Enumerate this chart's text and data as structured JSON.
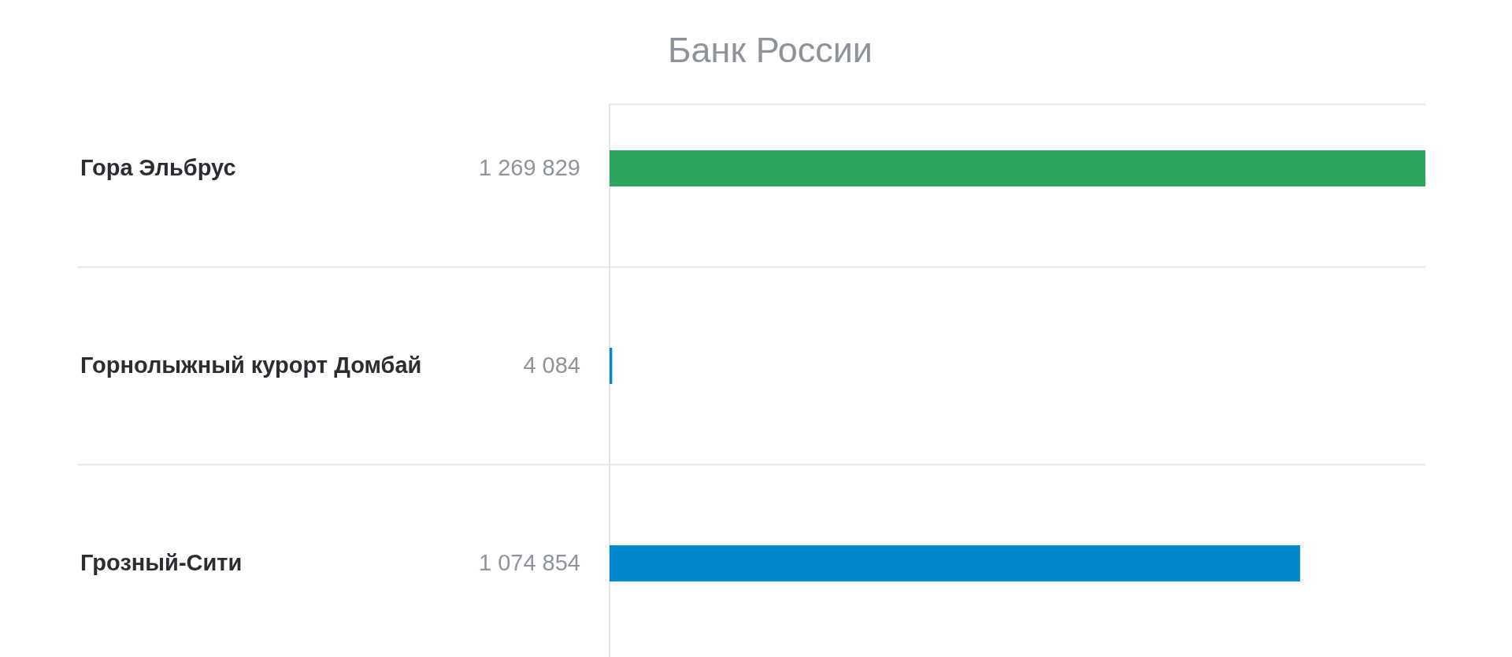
{
  "chart_data": {
    "type": "bar",
    "orientation": "horizontal",
    "title": "Банк России",
    "categories": [
      "Гора Эльбрус",
      "Горнолыжный курорт Домбай",
      "Грозный-Сити"
    ],
    "values": [
      1269829,
      4084,
      1074854
    ],
    "colors": [
      "#2ca65f",
      "#0088cc",
      "#0088cc"
    ],
    "value_labels": [
      "1 269 829",
      "4 084",
      "1 074 854"
    ],
    "grid": "y",
    "ref_lines": [
      {
        "axis": "x",
        "value": 0,
        "color": "#e3e5e9"
      }
    ]
  }
}
